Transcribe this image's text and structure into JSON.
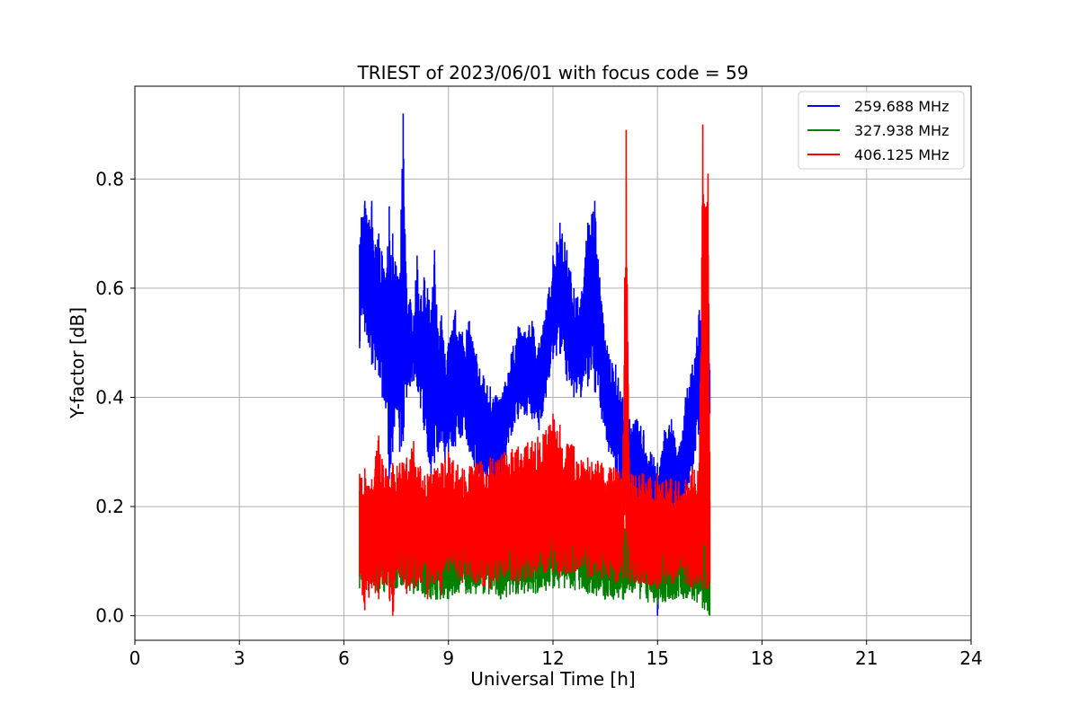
{
  "chart_data": {
    "type": "line",
    "title": "TRIEST of 2023/06/01 with focus code = 59",
    "xlabel": "Universal Time [h]",
    "ylabel": "Y-factor [dB]",
    "xlim": [
      0,
      24
    ],
    "ylim": [
      -0.045,
      0.97
    ],
    "xticks": [
      0,
      3,
      6,
      9,
      12,
      15,
      18,
      21,
      24
    ],
    "xtick_labels": [
      "0",
      "3",
      "6",
      "9",
      "12",
      "15",
      "18",
      "21",
      "24"
    ],
    "yticks": [
      0.0,
      0.2,
      0.4,
      0.6,
      0.8
    ],
    "ytick_labels": [
      "0.0",
      "0.2",
      "0.4",
      "0.6",
      "0.8"
    ],
    "grid": true,
    "legend_position": "top-right",
    "series": [
      {
        "name": "259.688 MHz",
        "color": "#0000ff",
        "x": [
          6.45,
          6.5,
          6.6,
          6.7,
          6.8,
          6.9,
          7.0,
          7.1,
          7.2,
          7.3,
          7.4,
          7.5,
          7.6,
          7.7,
          7.8,
          7.9,
          8.0,
          8.1,
          8.2,
          8.3,
          8.4,
          8.5,
          8.6,
          8.7,
          8.8,
          8.9,
          9.0,
          9.2,
          9.4,
          9.6,
          9.8,
          10.0,
          10.2,
          10.4,
          10.6,
          10.8,
          11.0,
          11.2,
          11.4,
          11.6,
          11.8,
          12.0,
          12.2,
          12.4,
          12.6,
          12.8,
          13.0,
          13.2,
          13.4,
          13.6,
          13.8,
          14.0,
          14.2,
          14.4,
          14.6,
          14.8,
          15.0,
          15.1,
          15.2,
          15.4,
          15.6,
          15.8,
          16.0,
          16.2,
          16.4,
          16.5
        ],
        "y_high": [
          0.68,
          0.73,
          0.76,
          0.72,
          0.76,
          0.68,
          0.7,
          0.66,
          0.62,
          0.75,
          0.7,
          0.64,
          0.62,
          0.92,
          0.6,
          0.58,
          0.55,
          0.66,
          0.58,
          0.62,
          0.6,
          0.56,
          0.67,
          0.52,
          0.55,
          0.48,
          0.5,
          0.56,
          0.52,
          0.54,
          0.48,
          0.44,
          0.42,
          0.4,
          0.42,
          0.48,
          0.53,
          0.52,
          0.54,
          0.5,
          0.56,
          0.66,
          0.72,
          0.67,
          0.6,
          0.58,
          0.72,
          0.76,
          0.57,
          0.48,
          0.46,
          0.4,
          0.36,
          0.36,
          0.34,
          0.3,
          0.28,
          0.29,
          0.34,
          0.36,
          0.3,
          0.4,
          0.46,
          0.56,
          0.54,
          0.45
        ],
        "y_low": [
          0.49,
          0.55,
          0.52,
          0.5,
          0.46,
          0.45,
          0.44,
          0.4,
          0.38,
          0.25,
          0.3,
          0.38,
          0.3,
          0.32,
          0.4,
          0.42,
          0.43,
          0.42,
          0.38,
          0.34,
          0.3,
          0.26,
          0.28,
          0.3,
          0.32,
          0.28,
          0.3,
          0.31,
          0.33,
          0.3,
          0.26,
          0.24,
          0.23,
          0.22,
          0.28,
          0.33,
          0.36,
          0.37,
          0.36,
          0.34,
          0.4,
          0.47,
          0.48,
          0.43,
          0.4,
          0.4,
          0.42,
          0.41,
          0.36,
          0.3,
          0.27,
          0.22,
          0.2,
          0.18,
          0.15,
          0.12,
          0.0,
          0.08,
          0.14,
          0.18,
          0.15,
          0.2,
          0.26,
          0.34,
          0.33,
          0.37
        ]
      },
      {
        "name": "327.938 MHz",
        "color": "#008000",
        "x": [
          6.45,
          7.0,
          7.5,
          8.0,
          8.5,
          9.0,
          9.5,
          10.0,
          10.5,
          11.0,
          11.5,
          12.0,
          12.5,
          13.0,
          13.5,
          14.0,
          14.5,
          15.0,
          15.5,
          16.0,
          16.5
        ],
        "y_high": [
          0.23,
          0.24,
          0.22,
          0.21,
          0.22,
          0.21,
          0.2,
          0.22,
          0.21,
          0.21,
          0.21,
          0.22,
          0.22,
          0.22,
          0.21,
          0.2,
          0.2,
          0.2,
          0.19,
          0.2,
          0.21
        ],
        "y_low": [
          0.05,
          0.04,
          0.05,
          0.04,
          0.03,
          0.03,
          0.04,
          0.04,
          0.03,
          0.04,
          0.04,
          0.05,
          0.05,
          0.04,
          0.03,
          0.03,
          0.03,
          0.02,
          0.03,
          0.03,
          0.0
        ]
      },
      {
        "name": "406.125 MHz",
        "color": "#ff0000",
        "x": [
          6.45,
          6.6,
          6.8,
          7.0,
          7.2,
          7.4,
          7.6,
          7.8,
          8.0,
          8.2,
          8.4,
          8.6,
          8.8,
          9.0,
          9.4,
          9.8,
          10.2,
          10.6,
          11.0,
          11.4,
          11.8,
          12.0,
          12.2,
          12.6,
          13.0,
          13.4,
          13.8,
          14.0,
          14.1,
          14.2,
          14.6,
          15.0,
          15.4,
          15.8,
          16.0,
          16.2,
          16.3,
          16.4,
          16.45,
          16.5
        ],
        "y_high": [
          0.26,
          0.27,
          0.25,
          0.33,
          0.27,
          0.28,
          0.28,
          0.29,
          0.32,
          0.27,
          0.26,
          0.27,
          0.28,
          0.3,
          0.27,
          0.28,
          0.29,
          0.3,
          0.31,
          0.32,
          0.34,
          0.37,
          0.35,
          0.31,
          0.29,
          0.28,
          0.27,
          0.27,
          0.89,
          0.26,
          0.26,
          0.26,
          0.25,
          0.25,
          0.27,
          0.28,
          0.9,
          0.75,
          0.81,
          0.3
        ],
        "y_low": [
          0.07,
          0.01,
          0.05,
          0.03,
          0.06,
          0.0,
          0.07,
          0.04,
          0.05,
          0.06,
          0.03,
          0.06,
          0.04,
          0.08,
          0.06,
          0.06,
          0.05,
          0.07,
          0.06,
          0.07,
          0.08,
          0.08,
          0.07,
          0.08,
          0.07,
          0.07,
          0.06,
          0.07,
          0.07,
          0.06,
          0.06,
          0.05,
          0.06,
          0.06,
          0.05,
          0.06,
          0.05,
          0.05,
          0.05,
          0.06
        ]
      }
    ]
  }
}
